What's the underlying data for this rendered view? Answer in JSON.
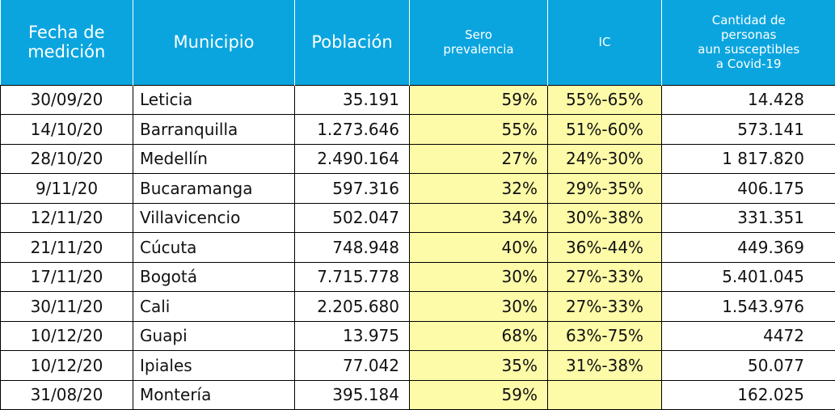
{
  "table": {
    "headers": [
      "Fecha de\nmedición",
      "Municipio",
      "Población",
      "Sero\nprevalencia",
      "IC",
      "Cantidad de\npersonas\naun susceptibles\na Covid-19"
    ],
    "rows": [
      [
        "30/09/20",
        "Leticia",
        "35.191",
        "59%",
        "55%-65%",
        "14.428"
      ],
      [
        "14/10/20",
        "Barranquilla",
        "1.273.646",
        "55%",
        "51%-60%",
        "573.141"
      ],
      [
        "28/10/20",
        "Medellín",
        "2.490.164",
        "27%",
        "24%-30%",
        "1 817.820"
      ],
      [
        "9/11/20",
        "Bucaramanga",
        "597.316",
        "32%",
        "29%-35%",
        "406.175"
      ],
      [
        "12/11/20",
        "Villavicencio",
        "502.047",
        "34%",
        "30%-38%",
        "331.351"
      ],
      [
        "21/11/20",
        "Cúcuta",
        "748.948",
        "40%",
        "36%-44%",
        "449.369"
      ],
      [
        "17/11/20",
        "Bogotá",
        "7.715.778",
        "30%",
        "27%-33%",
        "5.401.045"
      ],
      [
        "30/11/20",
        "Cali",
        "2.205.680",
        "30%",
        "27%-33%",
        "1.543.976"
      ],
      [
        "10/12/20",
        "Guapi",
        "13.975",
        "68%",
        "63%-75%",
        "4472"
      ],
      [
        "10/12/20",
        "Ipiales",
        "77.042",
        "35%",
        "31%-38%",
        "50.077"
      ],
      [
        "31/08/20",
        "Montería",
        "395.184",
        "59%",
        "",
        "162.025"
      ]
    ]
  },
  "colors": {
    "header_bg": "#0aa5df",
    "header_text": "#ffffff",
    "highlight_bg": "#fdfba8",
    "border": "#000000"
  }
}
